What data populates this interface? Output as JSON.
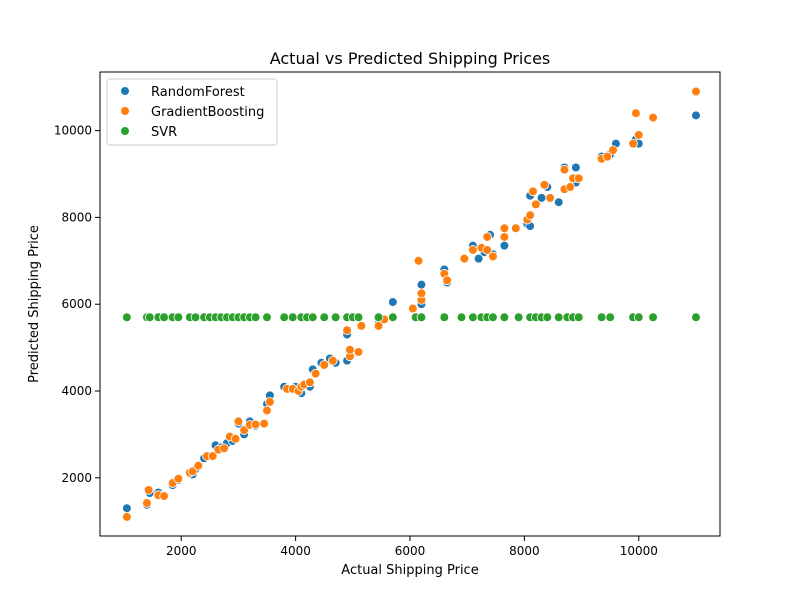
{
  "chart_data": {
    "type": "scatter",
    "title": "Actual vs Predicted Shipping Prices",
    "xlabel": "Actual Shipping Price",
    "ylabel": "Predicted Shipping Price",
    "xlim": [
      580,
      11420
    ],
    "ylim": [
      660,
      11350
    ],
    "xticks": [
      2000,
      4000,
      6000,
      8000,
      10000
    ],
    "yticks": [
      2000,
      4000,
      6000,
      8000,
      10000
    ],
    "grid": false,
    "legend_position": "top-left",
    "series": [
      {
        "name": "RandomForest",
        "color": "#1f77b4",
        "points": [
          [
            1050,
            1300
          ],
          [
            1400,
            1380
          ],
          [
            1450,
            1650
          ],
          [
            1600,
            1660
          ],
          [
            1700,
            1600
          ],
          [
            1850,
            1830
          ],
          [
            1950,
            1950
          ],
          [
            2150,
            2100
          ],
          [
            2200,
            2080
          ],
          [
            2250,
            2200
          ],
          [
            2400,
            2450
          ],
          [
            2500,
            2500
          ],
          [
            2600,
            2750
          ],
          [
            2700,
            2700
          ],
          [
            2800,
            2800
          ],
          [
            2900,
            2850
          ],
          [
            3000,
            3250
          ],
          [
            3100,
            3000
          ],
          [
            3200,
            3300
          ],
          [
            3300,
            3200
          ],
          [
            3450,
            3250
          ],
          [
            3500,
            3700
          ],
          [
            3550,
            3900
          ],
          [
            3800,
            4100
          ],
          [
            3900,
            4050
          ],
          [
            4000,
            4100
          ],
          [
            4100,
            3950
          ],
          [
            4150,
            4150
          ],
          [
            4250,
            4100
          ],
          [
            4300,
            4500
          ],
          [
            4450,
            4650
          ],
          [
            4600,
            4750
          ],
          [
            4700,
            4650
          ],
          [
            4900,
            4700
          ],
          [
            4900,
            5300
          ],
          [
            4950,
            4850
          ],
          [
            5100,
            4900
          ],
          [
            5450,
            5550
          ],
          [
            5700,
            6050
          ],
          [
            6200,
            6000
          ],
          [
            6200,
            6450
          ],
          [
            6600,
            6800
          ],
          [
            6650,
            6500
          ],
          [
            7100,
            7350
          ],
          [
            7200,
            7050
          ],
          [
            7300,
            7200
          ],
          [
            7400,
            7600
          ],
          [
            7450,
            7150
          ],
          [
            7650,
            7350
          ],
          [
            8050,
            7850
          ],
          [
            8100,
            7800
          ],
          [
            8100,
            8500
          ],
          [
            8200,
            8300
          ],
          [
            8300,
            8450
          ],
          [
            8400,
            8700
          ],
          [
            8600,
            8350
          ],
          [
            8700,
            9150
          ],
          [
            8800,
            8700
          ],
          [
            8900,
            9150
          ],
          [
            8900,
            8800
          ],
          [
            9350,
            9400
          ],
          [
            9500,
            9450
          ],
          [
            9600,
            9700
          ],
          [
            9900,
            9700
          ],
          [
            9950,
            9800
          ],
          [
            10000,
            9700
          ],
          [
            11000,
            10350
          ]
        ]
      },
      {
        "name": "GradientBoosting",
        "color": "#ff7f0e",
        "points": [
          [
            1050,
            1100
          ],
          [
            1400,
            1420
          ],
          [
            1430,
            1720
          ],
          [
            1600,
            1600
          ],
          [
            1700,
            1580
          ],
          [
            1850,
            1880
          ],
          [
            1950,
            1980
          ],
          [
            2150,
            2120
          ],
          [
            2200,
            2150
          ],
          [
            2300,
            2280
          ],
          [
            2450,
            2500
          ],
          [
            2550,
            2500
          ],
          [
            2650,
            2650
          ],
          [
            2750,
            2680
          ],
          [
            2850,
            2950
          ],
          [
            2950,
            2900
          ],
          [
            3000,
            3300
          ],
          [
            3100,
            3100
          ],
          [
            3200,
            3220
          ],
          [
            3300,
            3230
          ],
          [
            3450,
            3250
          ],
          [
            3500,
            3550
          ],
          [
            3550,
            3750
          ],
          [
            3850,
            4050
          ],
          [
            3950,
            4050
          ],
          [
            4050,
            4000
          ],
          [
            4100,
            4100
          ],
          [
            4150,
            4150
          ],
          [
            4250,
            4200
          ],
          [
            4350,
            4400
          ],
          [
            4500,
            4600
          ],
          [
            4650,
            4700
          ],
          [
            4900,
            5400
          ],
          [
            4950,
            4800
          ],
          [
            4950,
            4950
          ],
          [
            5100,
            4900
          ],
          [
            5150,
            5500
          ],
          [
            5450,
            5500
          ],
          [
            5550,
            5650
          ],
          [
            6050,
            5900
          ],
          [
            6150,
            7000
          ],
          [
            6200,
            6100
          ],
          [
            6200,
            6250
          ],
          [
            6600,
            6700
          ],
          [
            6650,
            6550
          ],
          [
            6950,
            7050
          ],
          [
            7100,
            7250
          ],
          [
            7250,
            7300
          ],
          [
            7350,
            7250
          ],
          [
            7350,
            7550
          ],
          [
            7450,
            7100
          ],
          [
            7650,
            7550
          ],
          [
            7650,
            7750
          ],
          [
            7850,
            7750
          ],
          [
            8050,
            7950
          ],
          [
            8100,
            8050
          ],
          [
            8150,
            8600
          ],
          [
            8200,
            8300
          ],
          [
            8350,
            8750
          ],
          [
            8450,
            8450
          ],
          [
            8700,
            9100
          ],
          [
            8700,
            8650
          ],
          [
            8800,
            8700
          ],
          [
            8850,
            8900
          ],
          [
            8950,
            8900
          ],
          [
            9350,
            9350
          ],
          [
            9450,
            9400
          ],
          [
            9550,
            9550
          ],
          [
            9900,
            9700
          ],
          [
            9950,
            10400
          ],
          [
            10000,
            9900
          ],
          [
            10250,
            10300
          ],
          [
            11000,
            10900
          ]
        ]
      },
      {
        "name": "SVR",
        "color": "#2ca02c",
        "points": [
          [
            1050,
            5700
          ],
          [
            1400,
            5700
          ],
          [
            1450,
            5700
          ],
          [
            1600,
            5700
          ],
          [
            1700,
            5700
          ],
          [
            1850,
            5700
          ],
          [
            1950,
            5700
          ],
          [
            2150,
            5700
          ],
          [
            2250,
            5700
          ],
          [
            2400,
            5700
          ],
          [
            2500,
            5700
          ],
          [
            2600,
            5700
          ],
          [
            2700,
            5700
          ],
          [
            2800,
            5700
          ],
          [
            2900,
            5700
          ],
          [
            3000,
            5700
          ],
          [
            3100,
            5700
          ],
          [
            3200,
            5700
          ],
          [
            3300,
            5700
          ],
          [
            3500,
            5700
          ],
          [
            3800,
            5700
          ],
          [
            3950,
            5700
          ],
          [
            4100,
            5700
          ],
          [
            4200,
            5700
          ],
          [
            4300,
            5700
          ],
          [
            4500,
            5700
          ],
          [
            4700,
            5700
          ],
          [
            4900,
            5700
          ],
          [
            5000,
            5700
          ],
          [
            5100,
            5700
          ],
          [
            5450,
            5700
          ],
          [
            5700,
            5700
          ],
          [
            6100,
            5700
          ],
          [
            6200,
            5700
          ],
          [
            6600,
            5700
          ],
          [
            6900,
            5700
          ],
          [
            7100,
            5700
          ],
          [
            7250,
            5700
          ],
          [
            7350,
            5700
          ],
          [
            7450,
            5700
          ],
          [
            7650,
            5700
          ],
          [
            7900,
            5700
          ],
          [
            8100,
            5700
          ],
          [
            8200,
            5700
          ],
          [
            8300,
            5700
          ],
          [
            8400,
            5700
          ],
          [
            8600,
            5700
          ],
          [
            8750,
            5700
          ],
          [
            8850,
            5700
          ],
          [
            8950,
            5700
          ],
          [
            9350,
            5700
          ],
          [
            9500,
            5700
          ],
          [
            9900,
            5700
          ],
          [
            10000,
            5700
          ],
          [
            10250,
            5700
          ],
          [
            11000,
            5700
          ]
        ]
      }
    ]
  }
}
